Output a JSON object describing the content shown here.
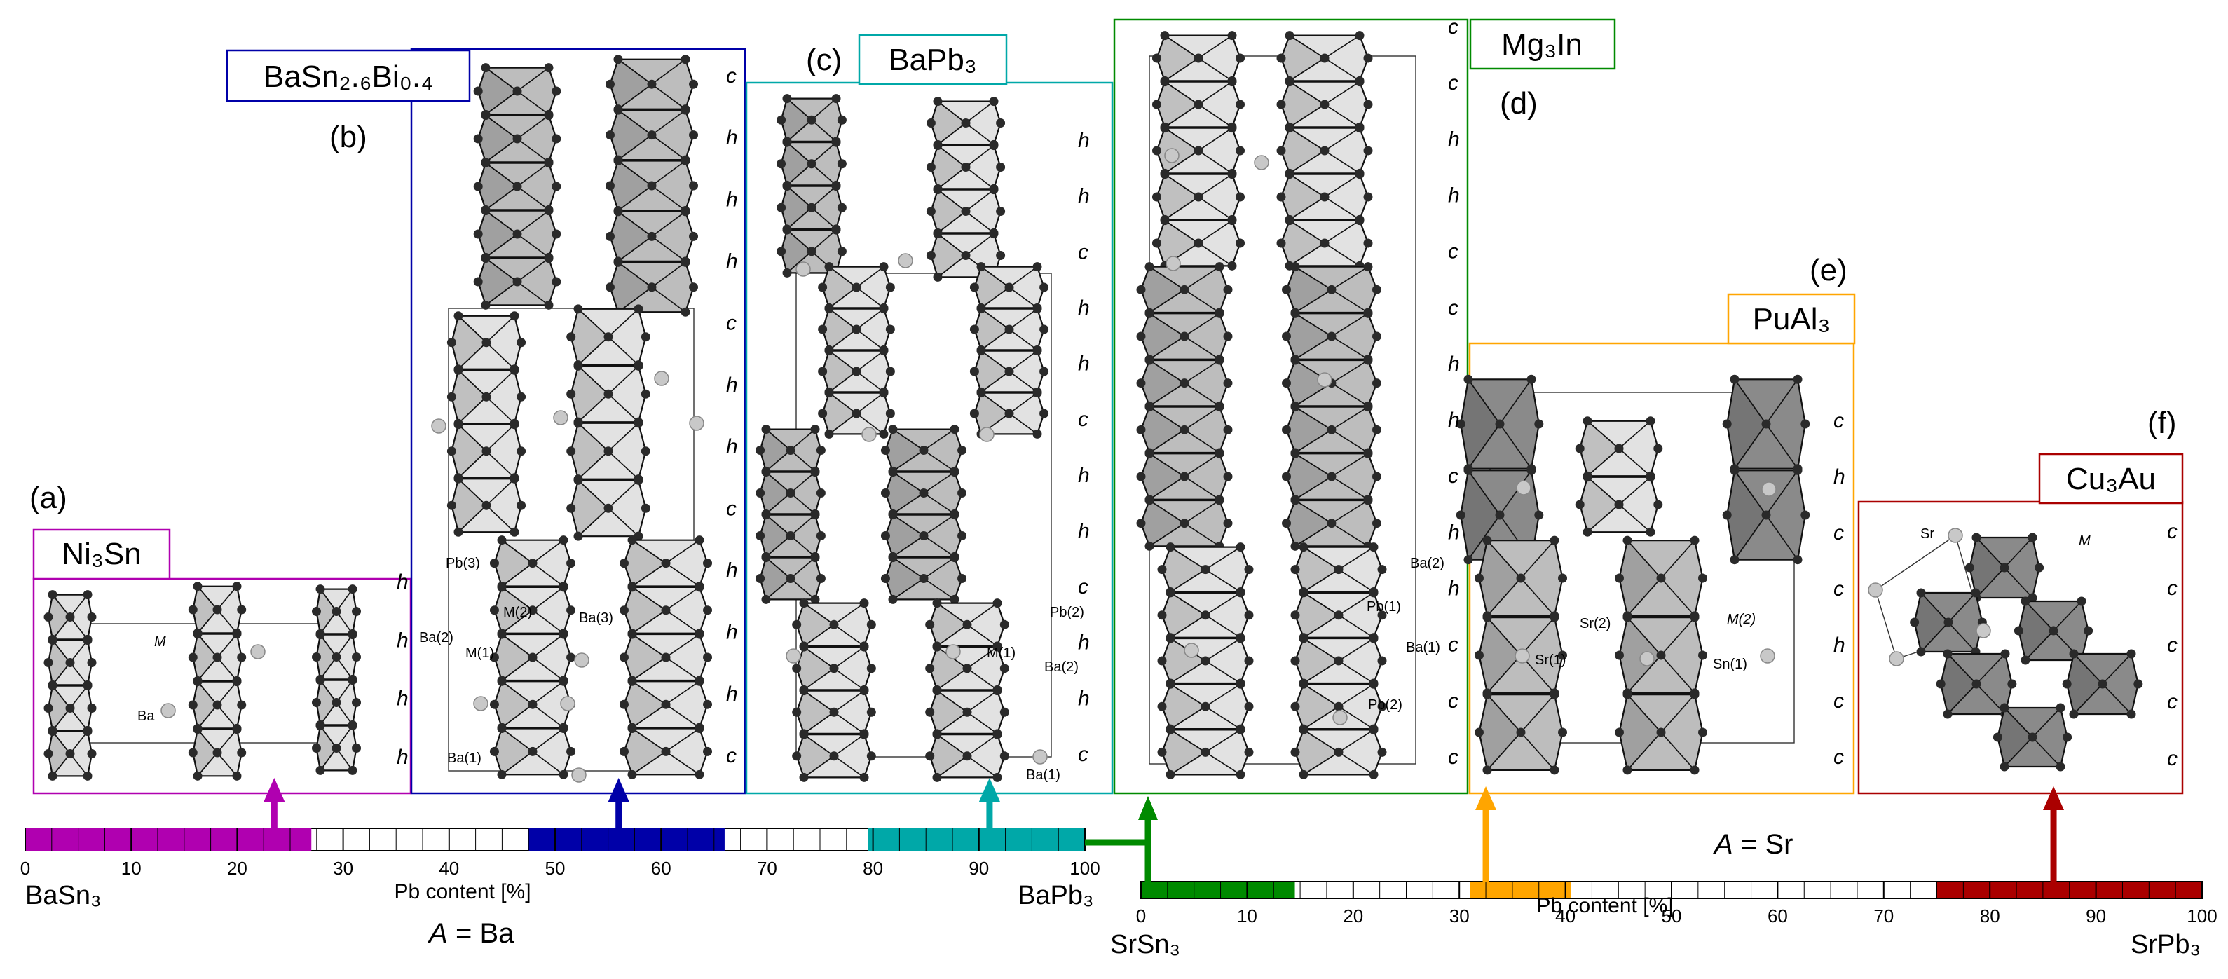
{
  "colors": {
    "magenta": "#b000b0",
    "blue": "#0000a8",
    "teal": "#00a8a8",
    "green": "#008a00",
    "orange": "#ffa500",
    "red": "#aa0000",
    "polyLight": "#e2e2e2",
    "polyMid": "#bdbdbd",
    "polyDark": "#8a8a8a"
  },
  "panels": {
    "a": {
      "letter": "(a)",
      "compound": "Ni₃Sn",
      "stacking": [
        "h",
        "h",
        "h",
        "h"
      ],
      "atoms": [
        "M",
        "Ba"
      ]
    },
    "b": {
      "letter": "(b)",
      "compound": "BaSn₂.₆Bi₀.₄",
      "stacking": [
        "c",
        "h",
        "h",
        "h",
        "c",
        "h",
        "h",
        "c",
        "h",
        "h",
        "h",
        "c"
      ],
      "atoms": [
        "Pb(3)",
        "M(2)",
        "M(1)",
        "Ba(3)",
        "Ba(2)",
        "Ba(1)"
      ]
    },
    "c": {
      "letter": "(c)",
      "compound": "BaPb₃",
      "stacking": [
        "h",
        "h",
        "c",
        "h",
        "h",
        "c",
        "h",
        "h",
        "c",
        "h",
        "h",
        "c"
      ],
      "atoms": [
        "M(1)",
        "Ba(2)",
        "Pb(2)",
        "Ba(1)"
      ]
    },
    "d": {
      "letter": "(d)",
      "compound": "Mg₃In",
      "stacking": [
        "c",
        "c",
        "h",
        "h",
        "c",
        "c",
        "h",
        "h",
        "c",
        "h",
        "h",
        "c",
        "c",
        "c"
      ],
      "atoms": [
        "Ba(2)",
        "Pb(1)",
        "Ba(1)",
        "Pb(2)"
      ]
    },
    "e": {
      "letter": "(e)",
      "compound": "PuAl₃",
      "stacking": [
        "c",
        "h",
        "c",
        "c",
        "h",
        "c",
        "c"
      ],
      "atoms": [
        "Sr(2)",
        "M(2)",
        "Sr(1)",
        "Sn(1)"
      ]
    },
    "f": {
      "letter": "(f)",
      "compound": "Cu₃Au",
      "stacking": [
        "c",
        "c",
        "c",
        "c",
        "c"
      ],
      "atoms": [
        "Sr",
        "M"
      ]
    }
  },
  "scaleBa": {
    "ticks": [
      "0",
      "10",
      "20",
      "30",
      "40",
      "50",
      "60",
      "70",
      "80",
      "90",
      "100"
    ],
    "left_label": "BaSn₃",
    "right_label": "BaPb₃",
    "axis_label": "Pb content [%]",
    "a_label": "A",
    "a_value": "= Ba",
    "segments": [
      {
        "from": 0,
        "to": 27,
        "color": "#b000b0"
      },
      {
        "from": 47.5,
        "to": 66,
        "color": "#0000a8"
      },
      {
        "from": 79.5,
        "to": 100,
        "color": "#00a8a8"
      }
    ],
    "arrows": [
      {
        "at": 23.5,
        "color": "#b000b0"
      },
      {
        "at": 56,
        "color": "#0000a8"
      },
      {
        "at": 91,
        "color": "#00a8a8"
      }
    ]
  },
  "scaleSr": {
    "ticks": [
      "0",
      "10",
      "20",
      "30",
      "40",
      "50",
      "60",
      "70",
      "80",
      "90",
      "100"
    ],
    "left_label": "SrSn₃",
    "right_label": "SrPb₃",
    "axis_label": "Pb content [%]",
    "a_label": "A",
    "a_value": "= Sr",
    "segments": [
      {
        "from": 0,
        "to": 14.5,
        "color": "#008a00"
      },
      {
        "from": 31,
        "to": 40.5,
        "color": "#ffa500"
      },
      {
        "from": 75,
        "to": 100,
        "color": "#aa0000"
      }
    ],
    "arrows": [
      {
        "at": 32.5,
        "color": "#ffa500"
      },
      {
        "at": 86,
        "color": "#aa0000"
      }
    ]
  }
}
